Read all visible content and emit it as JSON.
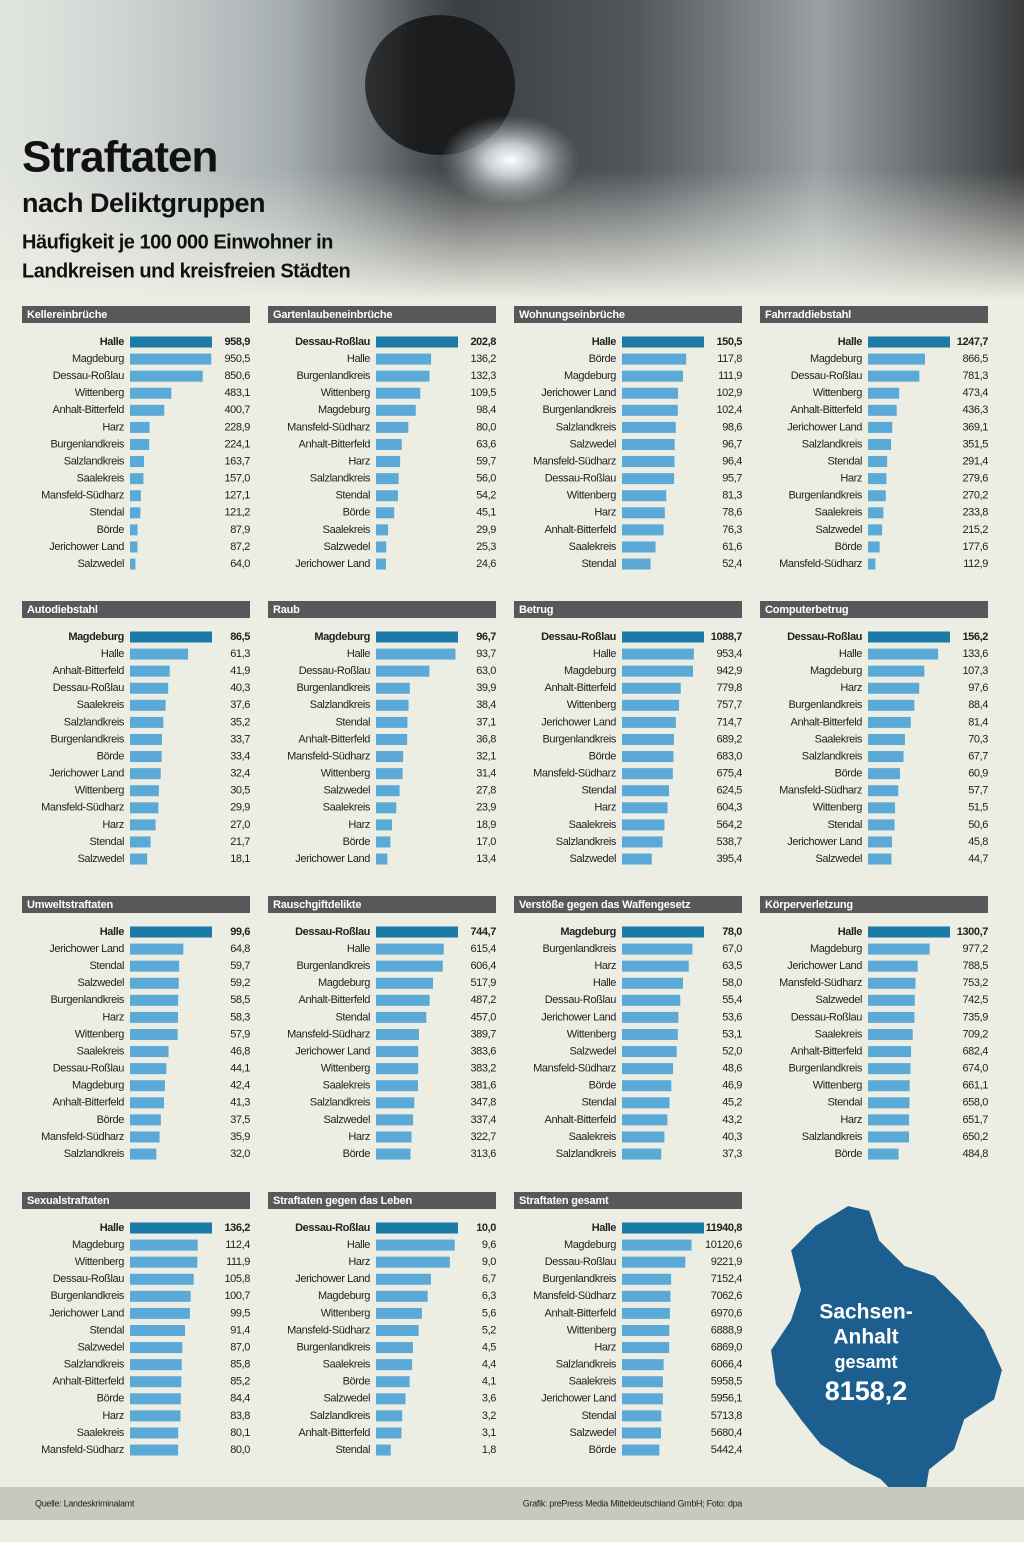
{
  "header": {
    "title": "Straftaten",
    "subtitle": "nach Deliktgruppen",
    "description": [
      "Häufigkeit je 100 000 Einwohner in",
      "Landkreisen und kreisfreien Städten"
    ]
  },
  "chart_data": [
    {
      "type": "bar",
      "title": "Kellereinbrüche",
      "color": "#5ba9d6",
      "highlight_color": "#1b7aa6",
      "categories": [
        "Halle",
        "Magdeburg",
        "Dessau-Roßlau",
        "Wittenberg",
        "Anhalt-Bitterfeld",
        "Harz",
        "Burgenlandkreis",
        "Salzlandkreis",
        "Saalekreis",
        "Mansfeld-Südharz",
        "Stendal",
        "Börde",
        "Jerichower Land",
        "Salzwedel"
      ],
      "values": [
        958.9,
        950.5,
        850.6,
        483.1,
        400.7,
        228.9,
        224.1,
        163.7,
        157.0,
        127.1,
        121.2,
        87.9,
        87.2,
        64.0
      ],
      "value_labels": [
        "958,9",
        "950,5",
        "850,6",
        "483,1",
        "400,7",
        "228,9",
        "224,1",
        "163,7",
        "157,0",
        "127,1",
        "121,2",
        "87,9",
        "87,2",
        "64,0"
      ]
    },
    {
      "type": "bar",
      "title": "Gartenlaubeneinbrüche",
      "color": "#5ba9d6",
      "highlight_color": "#1b7aa6",
      "categories": [
        "Dessau-Roßlau",
        "Halle",
        "Burgenlandkreis",
        "Wittenberg",
        "Magdeburg",
        "Mansfeld-Südharz",
        "Anhalt-Bitterfeld",
        "Harz",
        "Salzlandkreis",
        "Stendal",
        "Börde",
        "Saalekreis",
        "Salzwedel",
        "Jerichower Land"
      ],
      "values": [
        202.8,
        136.2,
        132.3,
        109.5,
        98.4,
        80.0,
        63.6,
        59.7,
        56.0,
        54.2,
        45.1,
        29.9,
        25.3,
        24.6
      ],
      "value_labels": [
        "202,8",
        "136,2",
        "132,3",
        "109,5",
        "98,4",
        "80,0",
        "63,6",
        "59,7",
        "56,0",
        "54,2",
        "45,1",
        "29,9",
        "25,3",
        "24,6"
      ]
    },
    {
      "type": "bar",
      "title": "Wohnungseinbrüche",
      "color": "#5ba9d6",
      "highlight_color": "#1b7aa6",
      "categories": [
        "Halle",
        "Börde",
        "Magdeburg",
        "Jerichower Land",
        "Burgenlandkreis",
        "Salzlandkreis",
        "Salzwedel",
        "Mansfeld-Südharz",
        "Dessau-Roßlau",
        "Wittenberg",
        "Harz",
        "Anhalt-Bitterfeld",
        "Saalekreis",
        "Stendal"
      ],
      "values": [
        150.5,
        117.8,
        111.9,
        102.9,
        102.4,
        98.6,
        96.7,
        96.4,
        95.7,
        81.3,
        78.6,
        76.3,
        61.6,
        52.4
      ],
      "value_labels": [
        "150,5",
        "117,8",
        "111,9",
        "102,9",
        "102,4",
        "98,6",
        "96,7",
        "96,4",
        "95,7",
        "81,3",
        "78,6",
        "76,3",
        "61,6",
        "52,4"
      ]
    },
    {
      "type": "bar",
      "title": "Fahrraddiebstahl",
      "color": "#5ba9d6",
      "highlight_color": "#1b7aa6",
      "categories": [
        "Halle",
        "Magdeburg",
        "Dessau-Roßlau",
        "Wittenberg",
        "Anhalt-Bitterfeld",
        "Jerichower Land",
        "Salzlandkreis",
        "Stendal",
        "Harz",
        "Burgenlandkreis",
        "Saalekreis",
        "Salzwedel",
        "Börde",
        "Mansfeld-Südharz"
      ],
      "values": [
        1247.7,
        866.5,
        781.3,
        473.4,
        436.3,
        369.1,
        351.5,
        291.4,
        279.6,
        270.2,
        233.8,
        215.2,
        177.6,
        112.9
      ],
      "value_labels": [
        "1247,7",
        "866,5",
        "781,3",
        "473,4",
        "436,3",
        "369,1",
        "351,5",
        "291,4",
        "279,6",
        "270,2",
        "233,8",
        "215,2",
        "177,6",
        "112,9"
      ]
    },
    {
      "type": "bar",
      "title": "Autodiebstahl",
      "color": "#5ba9d6",
      "highlight_color": "#1b7aa6",
      "categories": [
        "Magdeburg",
        "Halle",
        "Anhalt-Bitterfeld",
        "Dessau-Roßlau",
        "Saalekreis",
        "Salzlandkreis",
        "Burgenlandkreis",
        "Börde",
        "Jerichower Land",
        "Wittenberg",
        "Mansfeld-Südharz",
        "Harz",
        "Stendal",
        "Salzwedel"
      ],
      "values": [
        86.5,
        61.3,
        41.9,
        40.3,
        37.6,
        35.2,
        33.7,
        33.4,
        32.4,
        30.5,
        29.9,
        27.0,
        21.7,
        18.1
      ],
      "value_labels": [
        "86,5",
        "61,3",
        "41,9",
        "40,3",
        "37,6",
        "35,2",
        "33,7",
        "33,4",
        "32,4",
        "30,5",
        "29,9",
        "27,0",
        "21,7",
        "18,1"
      ]
    },
    {
      "type": "bar",
      "title": "Raub",
      "color": "#5ba9d6",
      "highlight_color": "#1b7aa6",
      "categories": [
        "Magdeburg",
        "Halle",
        "Dessau-Roßlau",
        "Burgenlandkreis",
        "Salzlandkreis",
        "Stendal",
        "Anhalt-Bitterfeld",
        "Mansfeld-Südharz",
        "Wittenberg",
        "Salzwedel",
        "Saalekreis",
        "Harz",
        "Börde",
        "Jerichower Land"
      ],
      "values": [
        96.7,
        93.7,
        63.0,
        39.9,
        38.4,
        37.1,
        36.8,
        32.1,
        31.4,
        27.8,
        23.9,
        18.9,
        17.0,
        13.4
      ],
      "value_labels": [
        "96,7",
        "93,7",
        "63,0",
        "39,9",
        "38,4",
        "37,1",
        "36,8",
        "32,1",
        "31,4",
        "27,8",
        "23,9",
        "18,9",
        "17,0",
        "13,4"
      ]
    },
    {
      "type": "bar",
      "title": "Betrug",
      "color": "#5ba9d6",
      "highlight_color": "#1b7aa6",
      "categories": [
        "Dessau-Roßlau",
        "Halle",
        "Magdeburg",
        "Anhalt-Bitterfeld",
        "Wittenberg",
        "Jerichower Land",
        "Burgenlandkreis",
        "Börde",
        "Mansfeld-Südharz",
        "Stendal",
        "Harz",
        "Saalekreis",
        "Salzlandkreis",
        "Salzwedel"
      ],
      "values": [
        1088.7,
        953.4,
        942.9,
        779.8,
        757.7,
        714.7,
        689.2,
        683.0,
        675.4,
        624.5,
        604.3,
        564.2,
        538.7,
        395.4
      ],
      "value_labels": [
        "1088,7",
        "953,4",
        "942,9",
        "779,8",
        "757,7",
        "714,7",
        "689,2",
        "683,0",
        "675,4",
        "624,5",
        "604,3",
        "564,2",
        "538,7",
        "395,4"
      ]
    },
    {
      "type": "bar",
      "title": "Computerbetrug",
      "color": "#5ba9d6",
      "highlight_color": "#1b7aa6",
      "categories": [
        "Dessau-Roßlau",
        "Halle",
        "Magdeburg",
        "Harz",
        "Burgenlandkreis",
        "Anhalt-Bitterfeld",
        "Saalekreis",
        "Salzlandkreis",
        "Börde",
        "Mansfeld-Südharz",
        "Wittenberg",
        "Stendal",
        "Jerichower Land",
        "Salzwedel"
      ],
      "values": [
        156.2,
        133.6,
        107.3,
        97.6,
        88.4,
        81.4,
        70.3,
        67.7,
        60.9,
        57.7,
        51.5,
        50.6,
        45.8,
        44.7
      ],
      "value_labels": [
        "156,2",
        "133,6",
        "107,3",
        "97,6",
        "88,4",
        "81,4",
        "70,3",
        "67,7",
        "60,9",
        "57,7",
        "51,5",
        "50,6",
        "45,8",
        "44,7"
      ]
    },
    {
      "type": "bar",
      "title": "Umweltstraftaten",
      "color": "#5ba9d6",
      "highlight_color": "#1b7aa6",
      "categories": [
        "Halle",
        "Jerichower Land",
        "Stendal",
        "Salzwedel",
        "Burgenlandkreis",
        "Harz",
        "Wittenberg",
        "Saalekreis",
        "Dessau-Roßlau",
        "Magdeburg",
        "Anhalt-Bitterfeld",
        "Börde",
        "Mansfeld-Südharz",
        "Salzlandkreis"
      ],
      "values": [
        99.6,
        64.8,
        59.7,
        59.2,
        58.5,
        58.3,
        57.9,
        46.8,
        44.1,
        42.4,
        41.3,
        37.5,
        35.9,
        32.0
      ],
      "value_labels": [
        "99,6",
        "64,8",
        "59,7",
        "59,2",
        "58,5",
        "58,3",
        "57,9",
        "46,8",
        "44,1",
        "42,4",
        "41,3",
        "37,5",
        "35,9",
        "32,0"
      ]
    },
    {
      "type": "bar",
      "title": "Rauschgiftdelikte",
      "color": "#5ba9d6",
      "highlight_color": "#1b7aa6",
      "categories": [
        "Dessau-Roßlau",
        "Halle",
        "Burgenlandkreis",
        "Magdeburg",
        "Anhalt-Bitterfeld",
        "Stendal",
        "Mansfeld-Südharz",
        "Jerichower Land",
        "Wittenberg",
        "Saalekreis",
        "Salzlandkreis",
        "Salzwedel",
        "Harz",
        "Börde"
      ],
      "values": [
        744.7,
        615.4,
        606.4,
        517.9,
        487.2,
        457.0,
        389.7,
        383.6,
        383.2,
        381.6,
        347.8,
        337.4,
        322.7,
        313.6
      ],
      "value_labels": [
        "744,7",
        "615,4",
        "606,4",
        "517,9",
        "487,2",
        "457,0",
        "389,7",
        "383,6",
        "383,2",
        "381,6",
        "347,8",
        "337,4",
        "322,7",
        "313,6"
      ]
    },
    {
      "type": "bar",
      "title": "Verstöße gegen das Waffengesetz",
      "color": "#5ba9d6",
      "highlight_color": "#1b7aa6",
      "categories": [
        "Magdeburg",
        "Burgenlandkreis",
        "Harz",
        "Halle",
        "Dessau-Roßlau",
        "Jerichower Land",
        "Wittenberg",
        "Salzwedel",
        "Mansfeld-Südharz",
        "Börde",
        "Stendal",
        "Anhalt-Bitterfeld",
        "Saalekreis",
        "Salzlandkreis"
      ],
      "values": [
        78.0,
        67.0,
        63.5,
        58.0,
        55.4,
        53.6,
        53.1,
        52.0,
        48.6,
        46.9,
        45.2,
        43.2,
        40.3,
        37.3
      ],
      "value_labels": [
        "78,0",
        "67,0",
        "63,5",
        "58,0",
        "55,4",
        "53,6",
        "53,1",
        "52,0",
        "48,6",
        "46,9",
        "45,2",
        "43,2",
        "40,3",
        "37,3"
      ]
    },
    {
      "type": "bar",
      "title": "Körperverletzung",
      "color": "#5ba9d6",
      "highlight_color": "#1b7aa6",
      "categories": [
        "Halle",
        "Magdeburg",
        "Jerichower Land",
        "Mansfeld-Südharz",
        "Salzwedel",
        "Dessau-Roßlau",
        "Saalekreis",
        "Anhalt-Bitterfeld",
        "Burgenlandkreis",
        "Wittenberg",
        "Stendal",
        "Harz",
        "Salzlandkreis",
        "Börde"
      ],
      "values": [
        1300.7,
        977.2,
        788.5,
        753.2,
        742.5,
        735.9,
        709.2,
        682.4,
        674.0,
        661.1,
        658.0,
        651.7,
        650.2,
        484.8
      ],
      "value_labels": [
        "1300,7",
        "977,2",
        "788,5",
        "753,2",
        "742,5",
        "735,9",
        "709,2",
        "682,4",
        "674,0",
        "661,1",
        "658,0",
        "651,7",
        "650,2",
        "484,8"
      ]
    },
    {
      "type": "bar",
      "title": "Sexualstraftaten",
      "color": "#5ba9d6",
      "highlight_color": "#1b7aa6",
      "categories": [
        "Halle",
        "Magdeburg",
        "Wittenberg",
        "Dessau-Roßlau",
        "Burgenlandkreis",
        "Jerichower Land",
        "Stendal",
        "Salzwedel",
        "Salzlandkreis",
        "Anhalt-Bitterfeld",
        "Börde",
        "Harz",
        "Saalekreis",
        "Mansfeld-Südharz"
      ],
      "values": [
        136.2,
        112.4,
        111.9,
        105.8,
        100.7,
        99.5,
        91.4,
        87.0,
        85.8,
        85.2,
        84.4,
        83.8,
        80.1,
        80.0
      ],
      "value_labels": [
        "136,2",
        "112,4",
        "111,9",
        "105,8",
        "100,7",
        "99,5",
        "91,4",
        "87,0",
        "85,8",
        "85,2",
        "84,4",
        "83,8",
        "80,1",
        "80,0"
      ]
    },
    {
      "type": "bar",
      "title": "Straftaten gegen das Leben",
      "color": "#5ba9d6",
      "highlight_color": "#1b7aa6",
      "categories": [
        "Dessau-Roßlau",
        "Halle",
        "Harz",
        "Jerichower Land",
        "Magdeburg",
        "Wittenberg",
        "Mansfeld-Südharz",
        "Burgenlandkreis",
        "Saalekreis",
        "Börde",
        "Salzwedel",
        "Salzlandkreis",
        "Anhalt-Bitterfeld",
        "Stendal"
      ],
      "values": [
        10.0,
        9.6,
        9.0,
        6.7,
        6.3,
        5.6,
        5.2,
        4.5,
        4.4,
        4.1,
        3.6,
        3.2,
        3.1,
        1.8
      ],
      "value_labels": [
        "10,0",
        "9,6",
        "9,0",
        "6,7",
        "6,3",
        "5,6",
        "5,2",
        "4,5",
        "4,4",
        "4,1",
        "3,6",
        "3,2",
        "3,1",
        "1,8"
      ]
    },
    {
      "type": "bar",
      "title": "Straftaten gesamt",
      "color": "#5ba9d6",
      "highlight_color": "#1b7aa6",
      "categories": [
        "Halle",
        "Magdeburg",
        "Dessau-Roßlau",
        "Burgenlandkreis",
        "Mansfeld-Südharz",
        "Anhalt-Bitterfeld",
        "Wittenberg",
        "Harz",
        "Salzlandkreis",
        "Saalekreis",
        "Jerichower Land",
        "Stendal",
        "Salzwedel",
        "Börde"
      ],
      "values": [
        11940.8,
        10120.6,
        9221.9,
        7152.4,
        7062.6,
        6970.6,
        6888.9,
        6869.0,
        6066.4,
        5958.5,
        5956.1,
        5713.8,
        5680.4,
        5442.4
      ],
      "value_labels": [
        "11940,8",
        "10120,6",
        "9221,9",
        "7152,4",
        "7062,6",
        "6970,6",
        "6888,9",
        "6869,0",
        "6066,4",
        "5958,5",
        "5956,1",
        "5713,8",
        "5680,4",
        "5442,4"
      ]
    }
  ],
  "map": {
    "label": [
      "Sachsen-",
      "Anhalt",
      "gesamt"
    ],
    "total": "8158,2"
  },
  "footer": {
    "source": "Quelle: Landeskriminalamt",
    "credit": "Grafik: prePress Media Mitteldeutschland GmbH; Foto: dpa"
  }
}
